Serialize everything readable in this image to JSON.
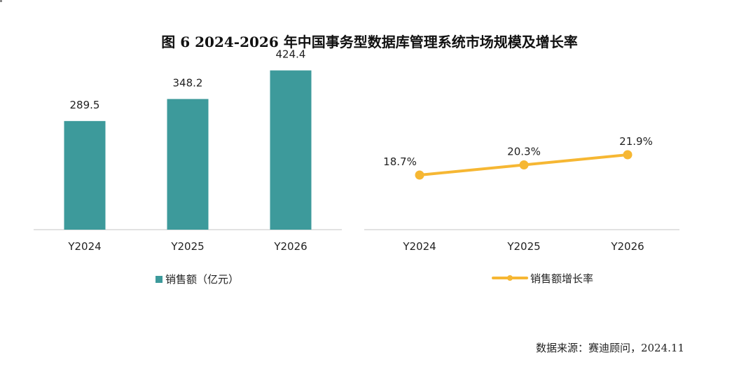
{
  "title": "图 6 2024-2026 年中国事务型数据库管理系统市场规模及增长率",
  "source": "数据来源：赛迪顾问，2024.11",
  "colors": {
    "bar": "#3d9a9b",
    "line": "#f6b733",
    "axis": "#d9d9d9",
    "text": "#222222"
  },
  "chart_data": [
    {
      "type": "bar",
      "categories": [
        "Y2024",
        "Y2025",
        "Y2026"
      ],
      "series": [
        {
          "name": "销售额（亿元）",
          "values": [
            289.5,
            348.2,
            424.4
          ]
        }
      ],
      "data_labels": [
        "289.5",
        "348.2",
        "424.4"
      ],
      "legend": "bottom",
      "grid": false
    },
    {
      "type": "line",
      "categories": [
        "Y2024",
        "Y2025",
        "Y2026"
      ],
      "series": [
        {
          "name": "销售额增长率",
          "values": [
            18.7,
            20.3,
            21.9
          ]
        }
      ],
      "data_labels": [
        "18.7%",
        "20.3%",
        "21.9%"
      ],
      "legend": "bottom",
      "grid": false
    }
  ]
}
